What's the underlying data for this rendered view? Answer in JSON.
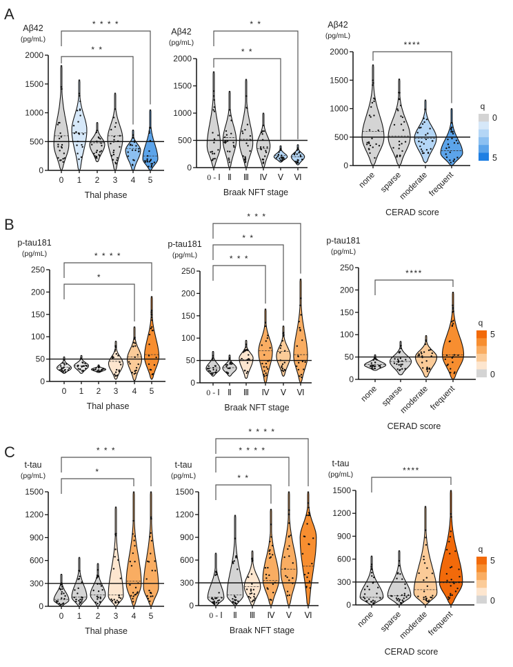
{
  "chart_data": [
    {
      "panel": "A",
      "type": "violin",
      "ylabel": "Aβ42",
      "yunit": "(pg/mL)",
      "xlabel": "Thal phase",
      "ylim": [
        0,
        2000
      ],
      "ticks": [
        0,
        500,
        1000,
        1500,
        2000
      ],
      "threshold": 500,
      "category_style": "plain",
      "categories": [
        {
          "label": "0",
          "min": 0,
          "max": 1820,
          "mode": 450,
          "median": 600,
          "q": 0
        },
        {
          "label": "1",
          "min": 0,
          "max": 1570,
          "mode": 700,
          "median": 650,
          "q": 1
        },
        {
          "label": "2",
          "min": 150,
          "max": 830,
          "mode": 450,
          "median": 480,
          "q": 0
        },
        {
          "label": "3",
          "min": 0,
          "max": 1340,
          "mode": 550,
          "median": 600,
          "q": 0
        },
        {
          "label": "4",
          "min": 0,
          "max": 700,
          "mode": 350,
          "median": 380,
          "q": 3
        },
        {
          "label": "5",
          "min": 0,
          "max": 1050,
          "mode": 200,
          "median": 250,
          "q": 4
        }
      ],
      "brackets": [
        {
          "from": 0,
          "to": 4,
          "label": "* *"
        },
        {
          "from": 0,
          "to": 5,
          "label": "* * * *"
        }
      ],
      "scale": "blue"
    },
    {
      "panel": "",
      "type": "violin",
      "ylabel": "Aβ42",
      "yunit": "(pg/mL)",
      "xlabel": "Braak NFT stage",
      "ylim": [
        0,
        2000
      ],
      "ticks": [
        0,
        500,
        1000,
        1500,
        2000
      ],
      "threshold": 500,
      "category_style": "roman",
      "categories": [
        {
          "label": "0 - Ⅰ",
          "min": 0,
          "max": 1760,
          "mode": 400,
          "median": 500,
          "q": 0
        },
        {
          "label": "Ⅱ",
          "min": 0,
          "max": 1400,
          "mode": 500,
          "median": 550,
          "q": 0
        },
        {
          "label": "Ⅲ",
          "min": 0,
          "max": 1620,
          "mode": 450,
          "median": 520,
          "q": 0
        },
        {
          "label": "Ⅳ",
          "min": 0,
          "max": 1000,
          "mode": 400,
          "median": 350,
          "q": 0
        },
        {
          "label": "Ⅴ",
          "min": 100,
          "max": 400,
          "mode": 200,
          "median": 220,
          "q": 2
        },
        {
          "label": "Ⅵ",
          "min": 50,
          "max": 420,
          "mode": 200,
          "median": 200,
          "q": 2
        }
      ],
      "brackets": [
        {
          "from": 0,
          "to": 4,
          "label": "* *"
        },
        {
          "from": 0,
          "to": 5,
          "label": "* *"
        }
      ],
      "scale": "blue"
    },
    {
      "panel": "",
      "type": "violin",
      "ylabel": "Aβ42",
      "yunit": "(pg/mL)",
      "xlabel": "CERAD score",
      "ylim": [
        0,
        2000
      ],
      "ticks": [
        0,
        500,
        1000,
        1500,
        2000
      ],
      "threshold": 500,
      "category_style": "rotated",
      "categories": [
        {
          "label": "none",
          "min": 0,
          "max": 1770,
          "mode": 500,
          "median": 600,
          "q": 0
        },
        {
          "label": "sparse",
          "min": 0,
          "max": 1520,
          "mode": 500,
          "median": 520,
          "q": 0
        },
        {
          "label": "moderate",
          "min": 50,
          "max": 1150,
          "mode": 480,
          "median": 480,
          "q": 2
        },
        {
          "label": "frequent",
          "min": 0,
          "max": 1000,
          "mode": 220,
          "median": 260,
          "q": 4
        }
      ],
      "brackets": [
        {
          "from": 0,
          "to": 3,
          "label": "****"
        }
      ],
      "scale": "blue",
      "legend": {
        "title": "q",
        "min_label": "0",
        "max_label": "5",
        "orientation": "gray-top"
      }
    },
    {
      "panel": "B",
      "type": "violin",
      "ylabel": "p-tau181",
      "yunit": "(pg/mL)",
      "xlabel": "Thal phase",
      "ylim": [
        0,
        250
      ],
      "ticks": [
        0,
        50,
        100,
        150,
        200,
        250
      ],
      "threshold": 50,
      "category_style": "plain",
      "categories": [
        {
          "label": "0",
          "min": 18,
          "max": 55,
          "mode": 30,
          "median": 32,
          "q": 0
        },
        {
          "label": "1",
          "min": 18,
          "max": 58,
          "mode": 35,
          "median": 35,
          "q": 0
        },
        {
          "label": "2",
          "min": 20,
          "max": 37,
          "mode": 27,
          "median": 27,
          "q": 0
        },
        {
          "label": "3",
          "min": 5,
          "max": 90,
          "mode": 40,
          "median": 45,
          "q": 1
        },
        {
          "label": "4",
          "min": 2,
          "max": 122,
          "mode": 50,
          "median": 55,
          "q": 2
        },
        {
          "label": "5",
          "min": 5,
          "max": 190,
          "mode": 55,
          "median": 60,
          "q": 4
        }
      ],
      "brackets": [
        {
          "from": 0,
          "to": 4,
          "label": "*"
        },
        {
          "from": 0,
          "to": 5,
          "label": "* * * *"
        }
      ],
      "scale": "orange"
    },
    {
      "panel": "",
      "type": "violin",
      "ylabel": "p-tau181",
      "yunit": "(pg/mL)",
      "xlabel": "Braak NFT stage",
      "ylim": [
        0,
        250
      ],
      "ticks": [
        0,
        50,
        100,
        150,
        200,
        250
      ],
      "threshold": 50,
      "category_style": "roman",
      "categories": [
        {
          "label": "0 - Ⅰ",
          "min": 15,
          "max": 70,
          "mode": 32,
          "median": 33,
          "q": 0
        },
        {
          "label": "Ⅱ",
          "min": 15,
          "max": 62,
          "mode": 33,
          "median": 34,
          "q": 0
        },
        {
          "label": "Ⅲ",
          "min": 10,
          "max": 95,
          "mode": 55,
          "median": 52,
          "q": 1
        },
        {
          "label": "Ⅳ",
          "min": 0,
          "max": 165,
          "mode": 70,
          "median": 72,
          "q": 3
        },
        {
          "label": "Ⅴ",
          "min": 15,
          "max": 127,
          "mode": 60,
          "median": 70,
          "q": 2
        },
        {
          "label": "Ⅵ",
          "min": 0,
          "max": 232,
          "mode": 60,
          "median": 63,
          "q": 3
        }
      ],
      "brackets": [
        {
          "from": 0,
          "to": 3,
          "label": "* * *"
        },
        {
          "from": 0,
          "to": 4,
          "label": "* *"
        },
        {
          "from": 0,
          "to": 5,
          "label": "* * *"
        }
      ],
      "scale": "orange"
    },
    {
      "panel": "",
      "type": "violin",
      "ylabel": "p-tau181",
      "yunit": "(pg/mL)",
      "xlabel": "CERAD score",
      "ylim": [
        0,
        250
      ],
      "ticks": [
        0,
        50,
        100,
        150,
        200,
        250
      ],
      "threshold": 50,
      "category_style": "rotated",
      "categories": [
        {
          "label": "none",
          "min": 20,
          "max": 55,
          "mode": 32,
          "median": 33,
          "q": 0
        },
        {
          "label": "sparse",
          "min": 10,
          "max": 85,
          "mode": 40,
          "median": 40,
          "q": 0
        },
        {
          "label": "moderate",
          "min": 5,
          "max": 98,
          "mode": 50,
          "median": 50,
          "q": 2
        },
        {
          "label": "frequent",
          "min": 0,
          "max": 195,
          "mode": 55,
          "median": 55,
          "q": 4
        }
      ],
      "brackets": [
        {
          "from": 0,
          "to": 3,
          "label": "****"
        }
      ],
      "scale": "orange",
      "legend": {
        "title": "q",
        "min_label": "0",
        "max_label": "5",
        "orientation": "color-top"
      }
    },
    {
      "panel": "C",
      "type": "violin",
      "ylabel": "t-tau",
      "yunit": "(pg/mL)",
      "xlabel": "Thal phase",
      "ylim": [
        0,
        1500
      ],
      "ticks": [
        0,
        300,
        600,
        900,
        1200,
        1500
      ],
      "threshold": 300,
      "category_style": "plain",
      "categories": [
        {
          "label": "0",
          "min": 0,
          "max": 420,
          "mode": 80,
          "median": 90,
          "q": 0
        },
        {
          "label": "1",
          "min": 0,
          "max": 640,
          "mode": 120,
          "median": 120,
          "q": 0
        },
        {
          "label": "2",
          "min": 0,
          "max": 560,
          "mode": 150,
          "median": 150,
          "q": 0
        },
        {
          "label": "3",
          "min": 0,
          "max": 1300,
          "mode": 130,
          "median": 150,
          "q": 1
        },
        {
          "label": "4",
          "min": 0,
          "max": 1500,
          "mode": 300,
          "median": 330,
          "q": 3
        },
        {
          "label": "5",
          "min": 0,
          "max": 1500,
          "mode": 250,
          "median": 300,
          "q": 3
        }
      ],
      "brackets": [
        {
          "from": 0,
          "to": 4,
          "label": "*"
        },
        {
          "from": 0,
          "to": 5,
          "label": "* * *"
        }
      ],
      "scale": "orange"
    },
    {
      "panel": "",
      "type": "violin",
      "ylabel": "t-tau",
      "yunit": "(pg/mL)",
      "xlabel": "Braak NFT stage",
      "ylim": [
        0,
        1500
      ],
      "ticks": [
        0,
        300,
        600,
        900,
        1200,
        1500
      ],
      "threshold": 300,
      "category_style": "roman",
      "categories": [
        {
          "label": "0 - Ⅰ",
          "min": 0,
          "max": 690,
          "mode": 100,
          "median": 110,
          "q": 0
        },
        {
          "label": "Ⅱ",
          "min": 0,
          "max": 1190,
          "mode": 130,
          "median": 140,
          "q": 0
        },
        {
          "label": "Ⅲ",
          "min": 0,
          "max": 720,
          "mode": 250,
          "median": 250,
          "q": 1
        },
        {
          "label": "Ⅳ",
          "min": 0,
          "max": 1270,
          "mode": 350,
          "median": 330,
          "q": 3
        },
        {
          "label": "Ⅴ",
          "min": 0,
          "max": 1500,
          "mode": 450,
          "median": 480,
          "q": 3
        },
        {
          "label": "Ⅵ",
          "min": 0,
          "max": 1500,
          "mode": 900,
          "median": 520,
          "q": 4
        }
      ],
      "brackets": [
        {
          "from": 0,
          "to": 3,
          "label": "* *"
        },
        {
          "from": 0,
          "to": 4,
          "label": "* * * *"
        },
        {
          "from": 0,
          "to": 5,
          "label": "* * * *"
        }
      ],
      "scale": "orange"
    },
    {
      "panel": "",
      "type": "violin",
      "ylabel": "t-tau",
      "yunit": "(pg/mL)",
      "xlabel": "CERAD score",
      "ylim": [
        0,
        1500
      ],
      "ticks": [
        0,
        300,
        600,
        900,
        1200,
        1500
      ],
      "threshold": 300,
      "category_style": "rotated",
      "categories": [
        {
          "label": "none",
          "min": 0,
          "max": 640,
          "mode": 100,
          "median": 100,
          "q": 0
        },
        {
          "label": "sparse",
          "min": 0,
          "max": 710,
          "mode": 120,
          "median": 120,
          "q": 0
        },
        {
          "label": "moderate",
          "min": 0,
          "max": 1290,
          "mode": 150,
          "median": 200,
          "q": 2
        },
        {
          "label": "frequent",
          "min": 0,
          "max": 1500,
          "mode": 300,
          "median": 290,
          "q": 5
        }
      ],
      "brackets": [
        {
          "from": 0,
          "to": 3,
          "label": "****"
        }
      ],
      "scale": "orange",
      "legend": {
        "title": "q",
        "min_label": "0",
        "max_label": "5",
        "orientation": "color-top"
      }
    }
  ],
  "colors": {
    "blue": [
      "#d4d4d4",
      "#d6e8f9",
      "#b4d6f6",
      "#8cc0f1",
      "#5ca4ea",
      "#1f7fe3"
    ],
    "orange": [
      "#d4d4d4",
      "#fde6cf",
      "#fbcb98",
      "#f9ad62",
      "#f78e30",
      "#f26a0a"
    ],
    "b_gray_light": "#e9e9e9"
  }
}
